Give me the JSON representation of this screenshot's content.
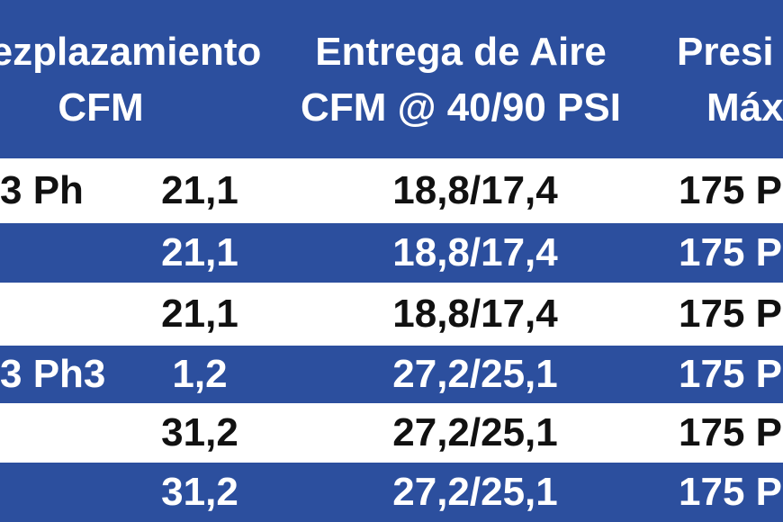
{
  "table": {
    "header": [
      [
        "ezplazamiento",
        "CFM"
      ],
      [
        "Entrega de Aire",
        "CFM @ 40/90 PSI"
      ],
      [
        "Presi",
        "Máx"
      ]
    ],
    "rows": [
      {
        "label": "3 Ph",
        "cells": [
          "21,1",
          "18,8/17,4",
          "175 P"
        ]
      },
      {
        "cells": [
          "21,1",
          "18,8/17,4",
          "175 P"
        ]
      },
      {
        "cells": [
          "21,1",
          "18,8/17,4",
          "175 P"
        ]
      },
      {
        "label": "3 Ph3",
        "cells": [
          "1,2",
          "27,2/25,1",
          "175 P"
        ]
      },
      {
        "cells": [
          "31,2",
          "27,2/25,1",
          "175 P"
        ]
      },
      {
        "cells": [
          "31,2",
          "27,2/25,1",
          "175 P"
        ]
      }
    ]
  }
}
